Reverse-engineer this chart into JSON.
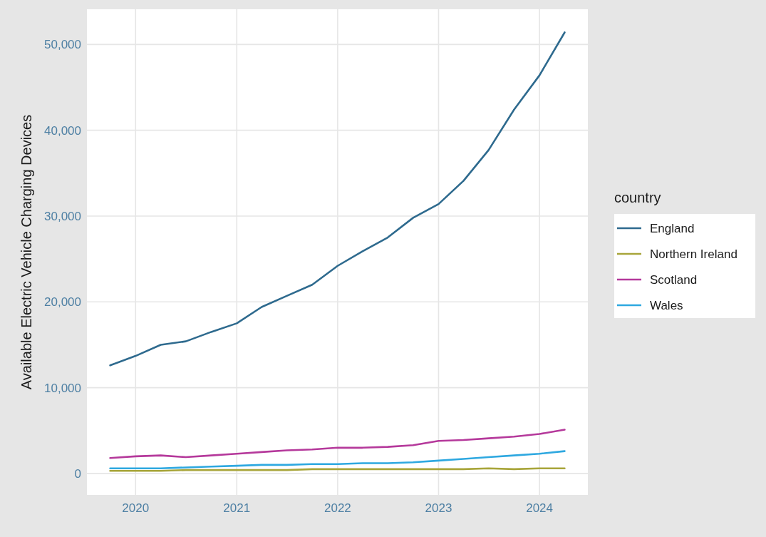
{
  "chart_data": {
    "type": "line",
    "ylabel": "Available Electric Vehicle Charging Devices",
    "legend_title": "country",
    "legend": "right",
    "grid": true,
    "line_style": "solid",
    "marker": "none",
    "x": [
      "2019-10-01",
      "2020-01-01",
      "2020-04-01",
      "2020-07-01",
      "2020-10-01",
      "2021-01-01",
      "2021-04-01",
      "2021-07-01",
      "2021-10-01",
      "2022-01-01",
      "2022-04-01",
      "2022-07-01",
      "2022-10-01",
      "2023-01-01",
      "2023-04-01",
      "2023-07-01",
      "2023-10-01",
      "2024-01-01",
      "2024-04-01"
    ],
    "xlim": [
      "2019-07-09",
      "2024-06-24"
    ],
    "xticks": [
      {
        "value": "2020-01-01",
        "label": "2020"
      },
      {
        "value": "2021-01-01",
        "label": "2021"
      },
      {
        "value": "2022-01-01",
        "label": "2022"
      },
      {
        "value": "2023-01-01",
        "label": "2023"
      },
      {
        "value": "2024-01-01",
        "label": "2024"
      }
    ],
    "ylim": [
      -2500,
      54100
    ],
    "yticks": [
      0,
      {
        "value": 10000,
        "label": "10,000"
      },
      {
        "value": 20000,
        "label": "20,000"
      },
      {
        "value": 30000,
        "label": "30,000"
      },
      {
        "value": 40000,
        "label": "40,000"
      },
      {
        "value": 50000,
        "label": "50,000"
      }
    ],
    "series": [
      {
        "name": "England",
        "color": "#2e6a8e",
        "values": [
          12600,
          13700,
          15000,
          15400,
          16500,
          17500,
          19400,
          20700,
          22000,
          24200,
          25900,
          27500,
          29800,
          31400,
          34100,
          37700,
          42400,
          46400,
          51400
        ]
      },
      {
        "name": "Northern Ireland",
        "color": "#a8a53a",
        "values": [
          300,
          300,
          300,
          400,
          400,
          400,
          400,
          400,
          500,
          500,
          500,
          500,
          500,
          500,
          500,
          600,
          500,
          600,
          600
        ]
      },
      {
        "name": "Scotland",
        "color": "#b5399b",
        "values": [
          1800,
          2000,
          2100,
          1900,
          2100,
          2300,
          2500,
          2700,
          2800,
          3000,
          3000,
          3100,
          3300,
          3800,
          3900,
          4100,
          4300,
          4600,
          5100
        ]
      },
      {
        "name": "Wales",
        "color": "#2ea8e0",
        "values": [
          600,
          600,
          600,
          700,
          800,
          900,
          1000,
          1000,
          1100,
          1100,
          1200,
          1200,
          1300,
          1500,
          1700,
          1900,
          2100,
          2300,
          2600
        ]
      }
    ]
  }
}
